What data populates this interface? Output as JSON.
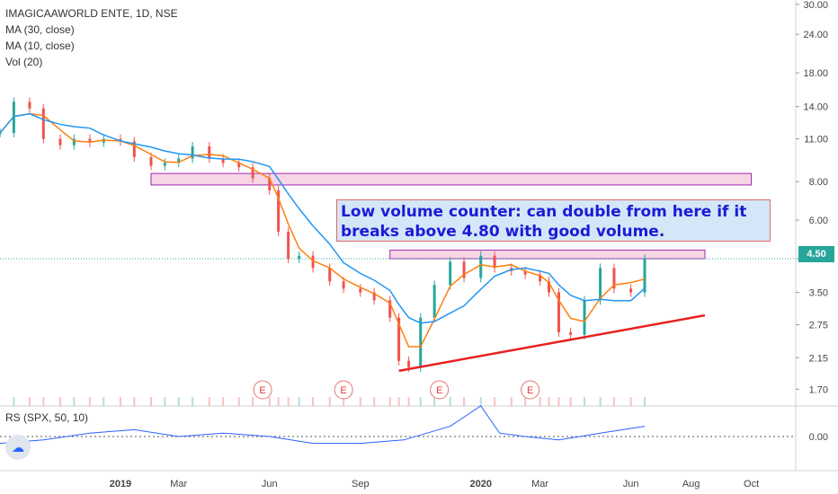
{
  "symbol_title": "IMAGICAAWORLD ENTE, 1D, NSE",
  "indicators": [
    "MA (30, close)",
    "MA (10, close)",
    "Vol (20)"
  ],
  "rs_indicator": "RS (SPX, 50, 10)",
  "annotation": "Low volume counter: can double from here if it breaks above 4.80 with good volume.",
  "current_price_label": "4.50",
  "earnings_marker": "E",
  "colors": {
    "up": "#26a69a",
    "down": "#ef5350",
    "ma30": "#2196f3",
    "ma10": "#ff7f0e",
    "zone_fill": "#f1b9d4",
    "zone_border": "#9c27b0",
    "trendline": "#e82020",
    "rs_line": "#2962ff",
    "price_line": "#26a69a"
  },
  "chart_data": {
    "type": "line",
    "title": "IMAGICAAWORLD ENTE, 1D, NSE",
    "y_scale": "log",
    "ylim": [
      1.5,
      31
    ],
    "y_ticks": [
      "30.00",
      "24.00",
      "18.00",
      "14.00",
      "11.00",
      "8.00",
      "6.00",
      "4.50",
      "3.50",
      "2.75",
      "2.15",
      "1.70"
    ],
    "x_tick_labels": [
      "2019",
      "Mar",
      "Jun",
      "Sep",
      "2020",
      "Mar",
      "Jun",
      "Aug",
      "Oct"
    ],
    "x_tick_dates": [
      "2019-01-01",
      "2019-03-01",
      "2019-06-01",
      "2019-09-01",
      "2020-01-01",
      "2020-03-01",
      "2020-06-01",
      "2020-08-01",
      "2020-10-01"
    ],
    "xlim": [
      "2018-09-01",
      "2020-11-15"
    ],
    "series": [
      {
        "name": "close",
        "x": [
          "2018-09-01",
          "2018-09-15",
          "2018-10-01",
          "2018-10-15",
          "2018-11-01",
          "2018-11-15",
          "2018-12-01",
          "2018-12-15",
          "2019-01-01",
          "2019-01-15",
          "2019-02-01",
          "2019-02-15",
          "2019-03-01",
          "2019-03-15",
          "2019-04-01",
          "2019-04-15",
          "2019-05-01",
          "2019-05-15",
          "2019-06-01",
          "2019-06-10",
          "2019-06-20",
          "2019-07-01",
          "2019-07-15",
          "2019-08-01",
          "2019-08-15",
          "2019-09-01",
          "2019-09-15",
          "2019-10-01",
          "2019-10-10",
          "2019-10-20",
          "2019-11-01",
          "2019-11-15",
          "2019-12-01",
          "2019-12-15",
          "2020-01-01",
          "2020-01-15",
          "2020-02-01",
          "2020-02-15",
          "2020-03-01",
          "2020-03-10",
          "2020-03-20",
          "2020-04-01",
          "2020-04-15",
          "2020-05-01",
          "2020-05-15",
          "2020-06-01",
          "2020-06-15"
        ],
        "values": [
          11.5,
          14.5,
          13.8,
          11.0,
          10.5,
          11.0,
          10.7,
          11.0,
          10.8,
          9.6,
          9.0,
          9.2,
          9.5,
          10.4,
          9.5,
          9.2,
          8.9,
          8.2,
          7.5,
          5.5,
          4.5,
          4.6,
          4.2,
          3.8,
          3.6,
          3.5,
          3.3,
          2.9,
          2.1,
          2.0,
          2.9,
          3.7,
          4.4,
          3.9,
          4.6,
          4.2,
          4.1,
          4.0,
          3.8,
          3.5,
          2.6,
          2.55,
          3.3,
          4.2,
          3.6,
          3.5,
          4.5
        ]
      }
    ],
    "resistance_zones": [
      {
        "x": [
          "2019-02-01",
          "2020-10-01"
        ],
        "y": [
          7.8,
          8.5
        ]
      },
      {
        "x": [
          "2019-10-01",
          "2020-08-15"
        ],
        "y": [
          4.5,
          4.8
        ]
      }
    ],
    "trendline": {
      "x": [
        "2019-10-10",
        "2020-08-15"
      ],
      "y": [
        1.95,
        2.95
      ]
    },
    "earnings_dates": [
      "2019-05-25",
      "2019-08-15",
      "2019-11-20",
      "2020-02-20"
    ],
    "rs": {
      "label": "RS (SPX, 50, 10)",
      "tick": "0.00",
      "x": [
        "2018-09-01",
        "2018-10-15",
        "2018-12-01",
        "2019-01-15",
        "2019-03-01",
        "2019-04-15",
        "2019-06-01",
        "2019-07-15",
        "2019-09-01",
        "2019-10-15",
        "2019-12-01",
        "2020-01-01",
        "2020-01-20",
        "2020-02-15",
        "2020-03-20",
        "2020-05-01",
        "2020-06-15"
      ],
      "values": [
        -0.02,
        -0.01,
        0.01,
        0.02,
        0.0,
        0.01,
        0.0,
        -0.02,
        -0.02,
        -0.01,
        0.03,
        0.09,
        0.01,
        0.0,
        -0.01,
        0.01,
        0.03
      ]
    }
  }
}
